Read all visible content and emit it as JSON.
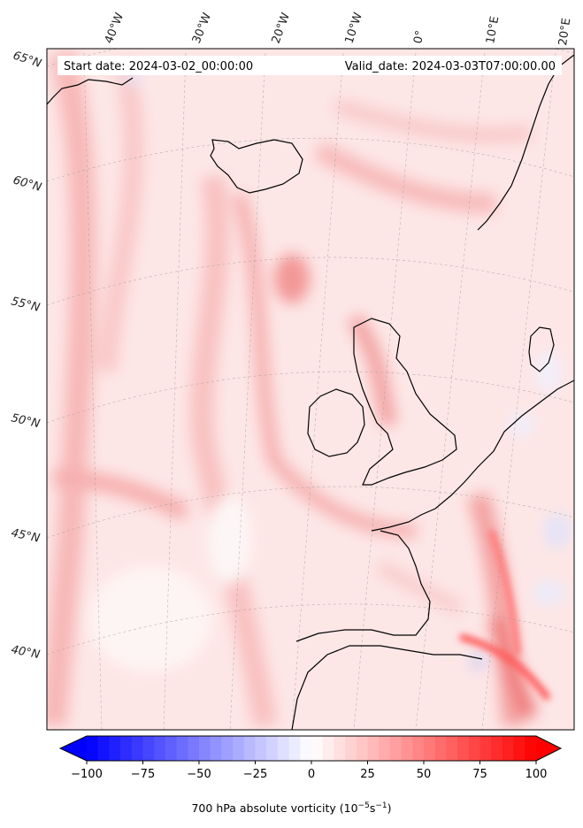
{
  "map": {
    "start_date_label": "Start date: 2024-03-02_00:00:00",
    "valid_date_label": "Valid_date: 2024-03-03T07:00:00.00",
    "lon_labels": [
      "40°W",
      "30°W",
      "20°W",
      "10°W",
      "0°",
      "10°E",
      "20°E"
    ],
    "lat_labels": [
      "65°N",
      "60°N",
      "55°N",
      "50°N",
      "45°N",
      "40°N"
    ]
  },
  "colorbar": {
    "ticks": [
      "−100",
      "−75",
      "−50",
      "−25",
      "0",
      "25",
      "50",
      "75",
      "100"
    ],
    "min": -100,
    "max": 100,
    "label_prefix": "700 hPa absolute vorticity (10",
    "label_exp1": "−5",
    "label_mid": "s",
    "label_exp2": "−1",
    "label_suffix": ")",
    "low_color": "#0000ff",
    "mid_color": "#ffffff",
    "high_color": "#ff0000"
  }
}
